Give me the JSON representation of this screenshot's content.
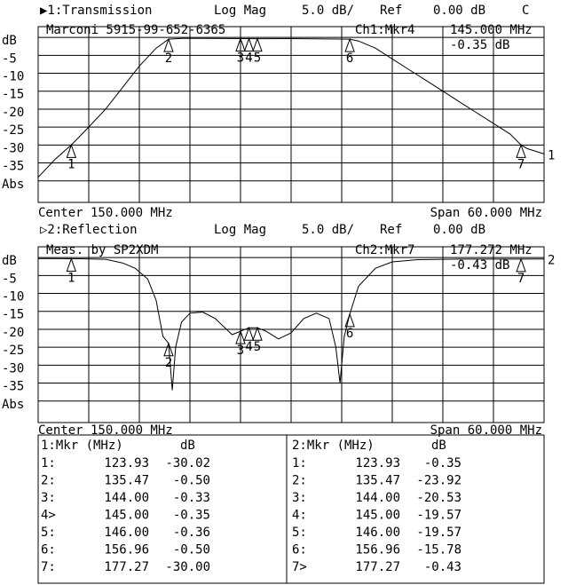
{
  "chart_data": [
    {
      "type": "line",
      "channel": "▶1:Transmission",
      "format": "Log Mag",
      "scale": "5.0 dB/",
      "ref_label": "Ref",
      "ref": "0.00 dB",
      "flag": "C",
      "annotation": "Marconi 5915-99-652-6365",
      "marker_channel": "Ch1:Mkr4",
      "marker_freq": "145.000 MHz",
      "marker_value": "-0.35 dB",
      "center": "Center 150.000 MHz",
      "span": "Span 60.000 MHz",
      "trace_label": "1",
      "xlim": [
        120,
        180
      ],
      "ylim": [
        -46,
        3
      ],
      "yticks": [
        {
          "value": 0,
          "label": "dB"
        },
        -5,
        -10,
        -15,
        -20,
        -25,
        -30,
        -35,
        {
          "value": -40,
          "label": "Abs"
        }
      ],
      "series": [
        {
          "name": "Transmission",
          "color": "#000000",
          "x": [
            120,
            122,
            123.93,
            126,
            128,
            130,
            132,
            134,
            135.47,
            137,
            140,
            144,
            145,
            146,
            150,
            156.96,
            158,
            160,
            162,
            164,
            166,
            168,
            170,
            172,
            174,
            176,
            177.27,
            178,
            180
          ],
          "values": [
            -39,
            -34,
            -30.02,
            -25,
            -20,
            -14,
            -8,
            -3,
            -0.5,
            -0.3,
            -0.3,
            -0.33,
            -0.35,
            -0.36,
            -0.35,
            -0.5,
            -1,
            -3,
            -6,
            -9,
            -12,
            -15,
            -18,
            -21,
            -24,
            -27,
            -30,
            -31,
            -32.5
          ]
        }
      ],
      "markers": {
        "labels": [
          "1",
          "2",
          "3",
          "4",
          "5",
          "6",
          "7"
        ],
        "x": [
          123.93,
          135.47,
          144,
          145,
          146,
          156.96,
          177.27
        ],
        "values": [
          -30.02,
          -0.5,
          -0.33,
          -0.35,
          -0.36,
          -0.5,
          -30
        ]
      }
    },
    {
      "type": "line",
      "channel": "▷2:Reflection",
      "format": "Log Mag",
      "scale": "5.0 dB/",
      "ref_label": "Ref",
      "ref": "0.00 dB",
      "annotation": "Meas. by SP2XDM",
      "marker_channel": "Ch2:Mkr7",
      "marker_freq": "177.272 MHz",
      "marker_value": "-0.43 dB",
      "center": "Center 150.000 MHz",
      "span": "Span 60.000 MHz",
      "trace_label": "2",
      "xlim": [
        120,
        180
      ],
      "ylim": [
        -46,
        3
      ],
      "yticks": [
        {
          "value": 0,
          "label": "dB"
        },
        -5,
        -10,
        -15,
        -20,
        -25,
        -30,
        -35,
        {
          "value": -40,
          "label": "Abs"
        }
      ],
      "series": [
        {
          "name": "Reflection",
          "color": "#000000",
          "x": [
            120,
            125,
            128,
            130,
            131.5,
            133,
            134,
            134.8,
            135.47,
            135.9,
            136.3,
            137,
            138,
            139.5,
            141,
            143,
            144,
            145,
            146,
            147,
            148.5,
            150,
            151.5,
            153,
            154.5,
            155.3,
            155.8,
            156.3,
            156.96,
            158,
            160,
            162,
            165,
            170,
            177.27,
            180
          ],
          "values": [
            -0.3,
            -0.35,
            -0.5,
            -1.5,
            -3,
            -6,
            -12,
            -22,
            -23.92,
            -37,
            -25,
            -18,
            -15.5,
            -15.2,
            -17,
            -21.5,
            -20.53,
            -19.57,
            -19.57,
            -20.5,
            -22.7,
            -21,
            -17,
            -15.5,
            -17,
            -25,
            -35,
            -22,
            -15.78,
            -8,
            -3,
            -1.2,
            -0.6,
            -0.45,
            -0.43,
            -0.4
          ]
        }
      ],
      "markers": {
        "labels": [
          "1",
          "2",
          "3",
          "4",
          "5",
          "6",
          "7"
        ],
        "x": [
          123.93,
          135.47,
          144,
          145,
          146,
          156.96,
          177.27
        ],
        "values": [
          -0.35,
          -23.92,
          -20.53,
          -19.57,
          -19.57,
          -15.78,
          -0.43
        ]
      }
    }
  ],
  "table": {
    "headers": [
      [
        "1:Mkr (MHz)",
        "dB"
      ],
      [
        "2:Mkr (MHz)",
        "dB"
      ]
    ],
    "left": [
      [
        "1:",
        "123.93",
        "-30.02"
      ],
      [
        "2:",
        "135.47",
        "-0.50"
      ],
      [
        "3:",
        "144.00",
        "-0.33"
      ],
      [
        "4>",
        "145.00",
        "-0.35"
      ],
      [
        "5:",
        "146.00",
        "-0.36"
      ],
      [
        "6:",
        "156.96",
        "-0.50"
      ],
      [
        "7:",
        "177.27",
        "-30.00"
      ]
    ],
    "right": [
      [
        "1:",
        "123.93",
        "-0.35"
      ],
      [
        "2:",
        "135.47",
        "-23.92"
      ],
      [
        "3:",
        "144.00",
        "-20.53"
      ],
      [
        "4:",
        "145.00",
        "-19.57"
      ],
      [
        "5:",
        "146.00",
        "-19.57"
      ],
      [
        "6:",
        "156.96",
        "-15.78"
      ],
      [
        "7>",
        "177.27",
        "-0.43"
      ]
    ]
  }
}
